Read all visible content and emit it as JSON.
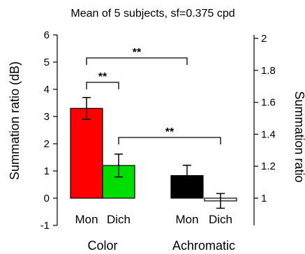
{
  "chart_data": {
    "type": "bar",
    "title": "Mean of 5 subjects, sf=0.375 cpd",
    "ylabel": "Summation ratio (dB)",
    "ylabel_right": "Summation ratio",
    "ylim": [
      -1,
      6
    ],
    "yticks": [
      "-1",
      "0",
      "1",
      "2",
      "3",
      "4",
      "5",
      "6"
    ],
    "right_yticks": [
      "1",
      "1.2",
      "1.4",
      "1.6",
      "1.8",
      "2"
    ],
    "groups": [
      "Color",
      "Achromatic"
    ],
    "categories": [
      "Mon",
      "Dich",
      "Mon",
      "Dich"
    ],
    "bars": [
      {
        "group": "Color",
        "category": "Mon",
        "value": 3.3,
        "error": 0.4,
        "color": "#ff0000"
      },
      {
        "group": "Color",
        "category": "Dich",
        "value": 1.2,
        "error": 0.42,
        "color": "#00dd00"
      },
      {
        "group": "Achromatic",
        "category": "Mon",
        "value": 0.83,
        "error": 0.38,
        "color": "#000000"
      },
      {
        "group": "Achromatic",
        "category": "Dich",
        "value": -0.1,
        "error": 0.27,
        "color": "#ffffff"
      }
    ],
    "significance": [
      {
        "from": 0,
        "to": 1,
        "label": "**"
      },
      {
        "from": 0,
        "to": 2,
        "label": "**"
      },
      {
        "from": 1,
        "to": 3,
        "label": "**"
      }
    ]
  }
}
